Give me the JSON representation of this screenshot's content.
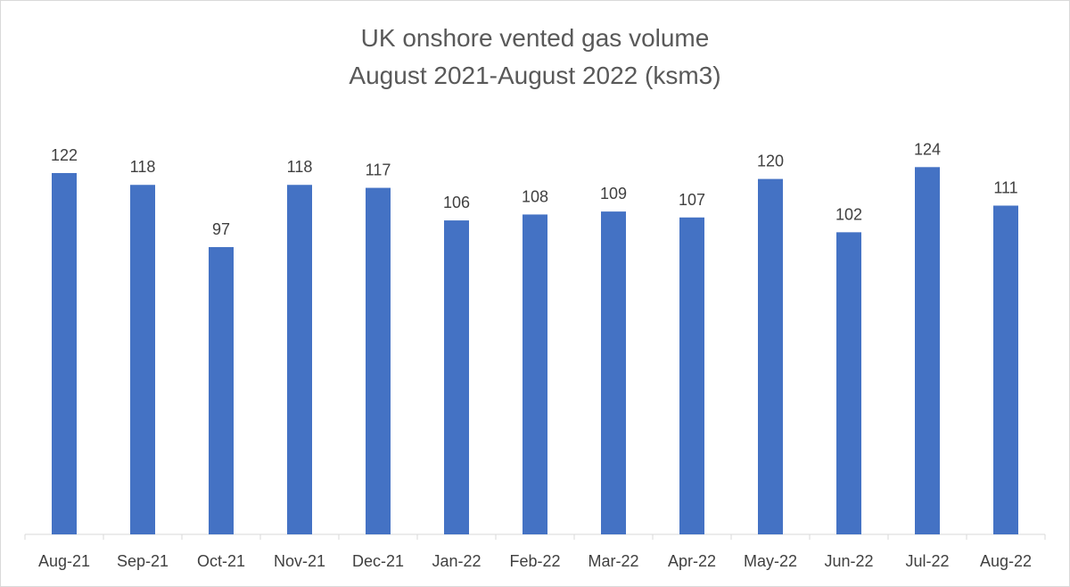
{
  "chart_data": {
    "type": "bar",
    "title": "UK onshore vented gas volume",
    "subtitle": "August 2021-August  2022  (ksm3)",
    "xlabel": "",
    "ylabel": "",
    "categories": [
      "Aug-21",
      "Sep-21",
      "Oct-21",
      "Nov-21",
      "Dec-21",
      "Jan-22",
      "Feb-22",
      "Mar-22",
      "Apr-22",
      "May-22",
      "Jun-22",
      "Jul-22",
      "Aug-22"
    ],
    "values": [
      122,
      118,
      97,
      118,
      117,
      106,
      108,
      109,
      107,
      120,
      102,
      124,
      111
    ],
    "ylim": [
      0,
      180
    ],
    "grid": false,
    "legend": "none",
    "data_labels": true,
    "colors": {
      "bar": "#4472c4",
      "axis": "#d9d9d9",
      "text": "#404040",
      "title": "#595959"
    }
  }
}
